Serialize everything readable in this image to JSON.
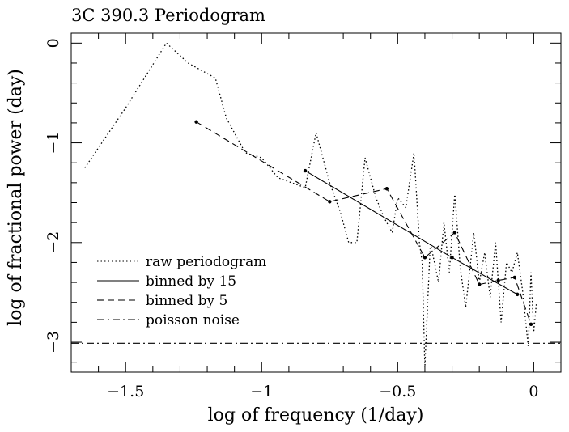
{
  "chart_data": {
    "type": "line",
    "title": "3C 390.3 Periodogram",
    "xlabel": "log of frequency (1/day)",
    "ylabel": "log of fractional power (day)",
    "xlim": [
      -1.7,
      0.1
    ],
    "ylim": [
      -3.3,
      0.1
    ],
    "xticks": [
      -1.5,
      -1,
      -0.5,
      0
    ],
    "xtick_labels": [
      "−1.5",
      "−1",
      "−0.5",
      "0"
    ],
    "yticks": [
      0,
      -1,
      -2,
      -3
    ],
    "ytick_labels": [
      "0",
      "−1",
      "−2",
      "−3"
    ],
    "grid": false,
    "legend_position": "lower-left",
    "series": [
      {
        "name": "raw periodogram",
        "style": "dotted",
        "x": [
          -1.65,
          -1.5,
          -1.35,
          -1.27,
          -1.17,
          -1.13,
          -1.06,
          -1.0,
          -0.94,
          -0.89,
          -0.84,
          -0.8,
          -0.75,
          -0.71,
          -0.68,
          -0.65,
          -0.62,
          -0.58,
          -0.55,
          -0.52,
          -0.5,
          -0.47,
          -0.44,
          -0.42,
          -0.41,
          -0.4,
          -0.38,
          -0.35,
          -0.33,
          -0.31,
          -0.29,
          -0.27,
          -0.25,
          -0.22,
          -0.2,
          -0.18,
          -0.16,
          -0.14,
          -0.12,
          -0.1,
          -0.08,
          -0.06,
          -0.04,
          -0.02,
          -0.01,
          0.0,
          0.01
        ],
        "y": [
          -1.25,
          -0.65,
          0.0,
          -0.2,
          -0.35,
          -0.75,
          -1.1,
          -1.15,
          -1.35,
          -1.4,
          -1.45,
          -0.9,
          -1.4,
          -1.7,
          -2.0,
          -2.0,
          -1.15,
          -1.55,
          -1.75,
          -1.9,
          -1.55,
          -1.65,
          -1.1,
          -2.0,
          -2.2,
          -3.25,
          -2.0,
          -2.4,
          -1.8,
          -2.3,
          -1.5,
          -2.25,
          -2.65,
          -1.9,
          -2.4,
          -2.1,
          -2.55,
          -2.0,
          -2.8,
          -2.2,
          -2.3,
          -2.1,
          -2.5,
          -3.05,
          -2.3,
          -2.9,
          -2.6
        ]
      },
      {
        "name": "binned by 15",
        "style": "solid",
        "x": [
          -0.84,
          -0.3,
          -0.06
        ],
        "y": [
          -1.28,
          -2.15,
          -2.52
        ]
      },
      {
        "name": "binned by 5",
        "style": "dashed",
        "x": [
          -1.24,
          -0.75,
          -0.54,
          -0.4,
          -0.29,
          -0.2,
          -0.13,
          -0.07,
          -0.01
        ],
        "y": [
          -0.79,
          -1.59,
          -1.46,
          -2.15,
          -1.9,
          -2.42,
          -2.38,
          -2.35,
          -2.82
        ]
      },
      {
        "name": "poisson noise",
        "style": "dashdot",
        "x": [
          -1.7,
          0.1
        ],
        "y": [
          -3.01,
          -3.01
        ]
      }
    ]
  }
}
